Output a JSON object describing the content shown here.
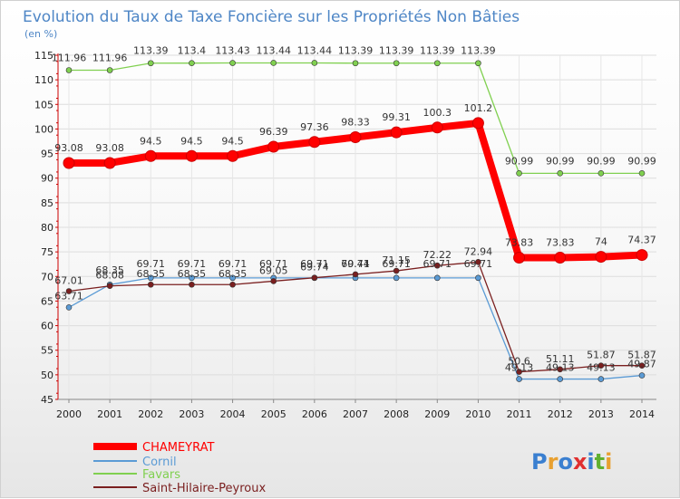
{
  "chart_data": {
    "type": "line",
    "title": "Evolution du Taux de Taxe Foncière sur les Propriétés Non Bâties",
    "ylabel": "(en %)",
    "xlabel": "",
    "ylim": [
      45,
      115
    ],
    "yticks": [
      45,
      50,
      55,
      60,
      65,
      70,
      75,
      80,
      85,
      90,
      95,
      100,
      105,
      110,
      115
    ],
    "grid": true,
    "legend_position": "bottom-left",
    "x": [
      "2000",
      "2001",
      "2002",
      "2003",
      "2004",
      "2005",
      "2006",
      "2007",
      "2008",
      "2009",
      "2010",
      "2011",
      "2012",
      "2013",
      "2014"
    ],
    "series": [
      {
        "name": "CHAMEYRAT",
        "color": "#ff0000",
        "values": [
          93.08,
          93.08,
          94.5,
          94.5,
          94.5,
          96.39,
          97.36,
          98.33,
          99.31,
          100.3,
          101.2,
          73.83,
          73.83,
          74,
          74.37
        ],
        "labels": [
          "93.08",
          "93.08",
          "94.5",
          "94.5",
          "94.5",
          "96.39",
          "97.36",
          "98.33",
          "99.31",
          "100.3",
          "101.2",
          "73.83",
          "73.83",
          "74",
          "74.37"
        ]
      },
      {
        "name": "Cornil",
        "color": "#5b9bd5",
        "values": [
          63.71,
          68.35,
          69.71,
          69.71,
          69.71,
          69.71,
          69.71,
          69.71,
          69.71,
          69.71,
          69.71,
          49.13,
          49.13,
          49.13,
          49.87
        ],
        "labels": [
          "63.71",
          "68.35",
          "69.71",
          "69.71",
          "69.71",
          "69.71",
          "69.71",
          "69.71",
          "69.71",
          "69.71",
          "69.71",
          "49.13",
          "49.13",
          "49.13",
          "49.87"
        ]
      },
      {
        "name": "Favars",
        "color": "#80d050",
        "values": [
          111.96,
          111.96,
          113.39,
          113.4,
          113.43,
          113.44,
          113.44,
          113.39,
          113.39,
          113.39,
          113.39,
          90.99,
          90.99,
          90.99,
          90.99
        ],
        "labels": [
          "111.96",
          "111.96",
          "113.39",
          "113.4",
          "113.43",
          "113.44",
          "113.44",
          "113.39",
          "113.39",
          "113.39",
          "113.39",
          "90.99",
          "90.99",
          "90.99",
          "90.99"
        ]
      },
      {
        "name": "Saint-Hilaire-Peyroux",
        "color": "#7a1f1f",
        "values": [
          67.01,
          68.08,
          68.35,
          68.35,
          68.35,
          69.05,
          69.74,
          70.44,
          71.15,
          72.22,
          72.94,
          50.6,
          51.11,
          51.87,
          51.87
        ],
        "labels": [
          "67.01",
          "68.08",
          "68.35",
          "68.35",
          "68.35",
          "69.05",
          "69.74",
          "70.44",
          "71.15",
          "72.22",
          "72.94",
          "50.6",
          "51.11",
          "51.87",
          "51.87"
        ]
      }
    ]
  },
  "logo": {
    "letters": [
      "P",
      "r",
      "o",
      "x",
      "i",
      "t",
      "i"
    ],
    "colors": [
      "#3a7fd0",
      "#e8a030",
      "#3a7fd0",
      "#e03030",
      "#3a7fd0",
      "#60b030",
      "#e8a030"
    ]
  }
}
